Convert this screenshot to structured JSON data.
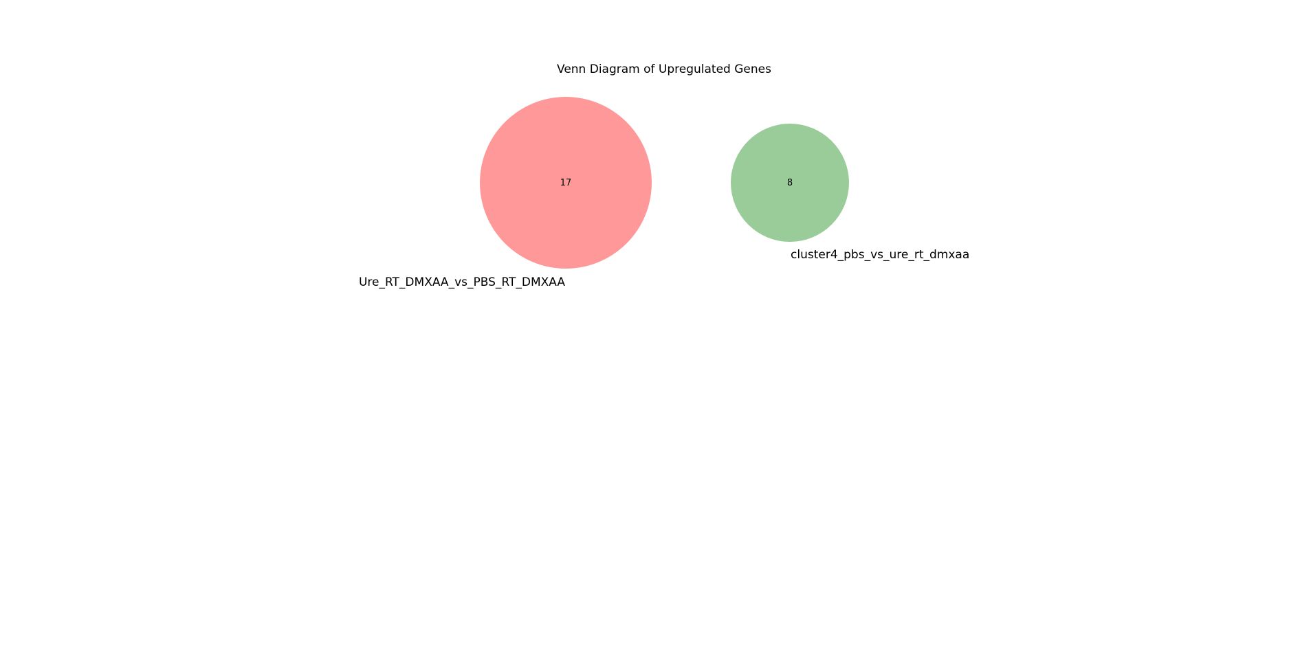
{
  "title": "Venn Diagram of Upregulated Genes",
  "sets": [
    {
      "name": "Ure_RT_DMXAA_vs_PBS_RT_DMXAA",
      "count": "17",
      "color": "#ff9999"
    },
    {
      "name": "cluster4_pbs_vs_ure_rt_dmxaa",
      "count": "8",
      "color": "#99cc99"
    }
  ],
  "intersection_count": 0
}
